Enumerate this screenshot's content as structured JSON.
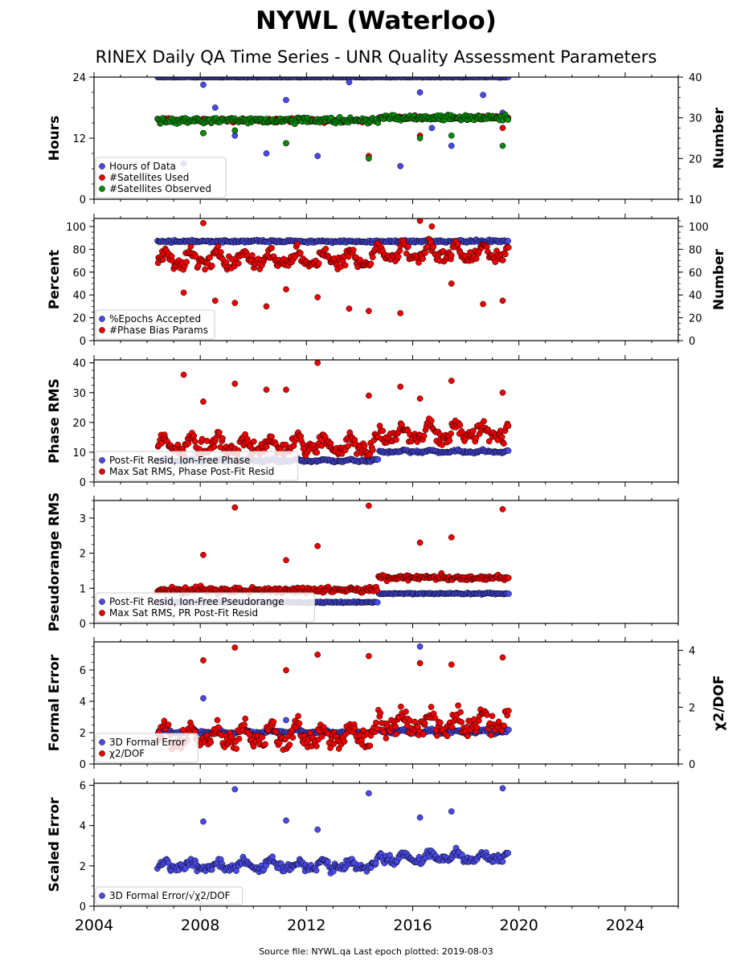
{
  "title": "NYWL (Waterloo)",
  "subtitle": "RINEX Daily QA Time Series - UNR Quality Assessment Parameters",
  "footer": "Source file: NYWL.qa Last epoch plotted: 2019-08-03",
  "colors": {
    "blue": "#4a4ae8",
    "red": "#ee0000",
    "green": "#0a8a0a",
    "edge": "#000000"
  },
  "chart_data": [
    {
      "type": "scatter",
      "panel": "hours",
      "ylabel": "Hours",
      "ylim": [
        0,
        24
      ],
      "yticks": [
        0,
        12,
        24
      ],
      "y2label": "Number",
      "y2lim": [
        10,
        40
      ],
      "y2ticks": [
        10,
        20,
        30,
        40
      ],
      "xlim": [
        2004,
        2026
      ],
      "xticks": [
        2004,
        2008,
        2012,
        2016,
        2020,
        2024
      ],
      "legend_position": "lower-left",
      "series": [
        {
          "name": "Hours of Data",
          "color": "blue",
          "axis": "left",
          "x_range": [
            2006.4,
            2019.6
          ],
          "baseline": 24,
          "trend": 0,
          "spread": 0.1,
          "outlier_values": [
            22.5,
            21.0,
            19.5,
            17.0,
            15.0,
            12.5,
            10.5,
            8.5,
            7.0,
            6.5,
            9.0,
            20.5,
            23.0,
            18.0,
            14.0
          ]
        },
        {
          "name": "#Satellites Used",
          "color": "red",
          "axis": "left",
          "x_range": [
            2006.4,
            2019.6
          ],
          "baseline": 15.5,
          "trend": 0.5,
          "spread": 0.5,
          "outlier_values": [
            13.0,
            12.5,
            11.0,
            14.0,
            8.5,
            13.5
          ]
        },
        {
          "name": "#Satellites Observed",
          "color": "green",
          "axis": "left",
          "x_range": [
            2006.4,
            2019.6
          ],
          "baseline": 15.5,
          "trend": 0.5,
          "spread": 0.8,
          "outlier_values": [
            13.0,
            12.0,
            11.0,
            10.5,
            8.0,
            13.5,
            12.5
          ]
        }
      ]
    },
    {
      "type": "scatter",
      "panel": "percent",
      "ylabel": "Percent",
      "ylim": [
        0,
        107
      ],
      "yticks": [
        0,
        20,
        40,
        60,
        80,
        100
      ],
      "y2label": "Number",
      "y2lim": [
        0,
        107
      ],
      "y2ticks": [
        0,
        20,
        40,
        60,
        80,
        100
      ],
      "xlim": [
        2004,
        2026
      ],
      "xticks": [
        2004,
        2008,
        2012,
        2016,
        2020,
        2024
      ],
      "legend_position": "lower-left",
      "series": [
        {
          "name": "%Epochs Accepted",
          "color": "blue",
          "axis": "left",
          "x_range": [
            2006.4,
            2019.6
          ],
          "baseline": 87,
          "trend": 0,
          "spread": 1.5,
          "outlier_values": []
        },
        {
          "name": "#Phase Bias Params",
          "color": "red",
          "axis": "left",
          "x_range": [
            2006.4,
            2019.6
          ],
          "baseline": 68,
          "trend": 6,
          "spread": 8,
          "outlier_values": [
            103,
            105,
            45,
            35,
            26,
            33,
            50,
            38,
            42,
            24,
            30,
            32,
            28,
            35,
            100
          ]
        }
      ]
    },
    {
      "type": "scatter",
      "panel": "phase-rms",
      "ylabel": "Phase RMS",
      "ylim": [
        0,
        41
      ],
      "yticks": [
        0,
        10,
        20,
        30,
        40
      ],
      "xlim": [
        2004,
        2026
      ],
      "xticks": [
        2004,
        2008,
        2012,
        2016,
        2020,
        2024
      ],
      "legend_position": "lower-left",
      "series": [
        {
          "name": "Post-Fit Resid, Ion-Free Phase",
          "color": "blue",
          "axis": "left",
          "x_range": [
            2006.4,
            2019.6
          ],
          "baseline": 7,
          "trend": 3,
          "spread": 0.5,
          "outlier_values": []
        },
        {
          "name": "Max Sat RMS, Phase Post-Fit Resid",
          "color": "red",
          "axis": "left",
          "x_range": [
            2006.4,
            2019.6
          ],
          "baseline": 11,
          "trend": 4,
          "spread": 3.5,
          "outlier_values": [
            27,
            28,
            31,
            30,
            29,
            33,
            34,
            40,
            36,
            32,
            31
          ]
        }
      ]
    },
    {
      "type": "scatter",
      "panel": "pseudorange-rms",
      "ylabel": "Pseudorange RMS",
      "ylim": [
        0,
        3.5
      ],
      "yticks": [
        0,
        1,
        2,
        3
      ],
      "xlim": [
        2004,
        2026
      ],
      "xticks": [
        2004,
        2008,
        2012,
        2016,
        2020,
        2024
      ],
      "legend_position": "lower-left",
      "series": [
        {
          "name": "Post-Fit Resid, Ion-Free Pseudorange",
          "color": "blue",
          "axis": "left",
          "x_range": [
            2006.4,
            2019.6
          ],
          "baseline": 0.6,
          "trend": 0.25,
          "spread": 0.03,
          "outlier_values": []
        },
        {
          "name": "Max Sat RMS, PR Post-Fit Resid",
          "color": "red",
          "axis": "left",
          "x_range": [
            2006.4,
            2019.6
          ],
          "baseline": 0.95,
          "trend": 0.35,
          "spread": 0.12,
          "outlier_values": [
            1.95,
            2.3,
            1.8,
            3.25,
            3.35,
            3.3,
            2.45,
            2.2
          ]
        }
      ]
    },
    {
      "type": "scatter",
      "panel": "formal-error",
      "ylabel": "Formal Error",
      "ylim": [
        0,
        7.8
      ],
      "yticks": [
        0,
        2,
        4,
        6
      ],
      "y2label": "χ2/DOF",
      "y2lim": [
        0,
        4.3
      ],
      "y2ticks": [
        0,
        2,
        4
      ],
      "xlim": [
        2004,
        2026
      ],
      "xticks": [
        2004,
        2008,
        2012,
        2016,
        2020,
        2024
      ],
      "legend_position": "lower-left",
      "series": [
        {
          "name": "3D Formal Error",
          "color": "blue",
          "axis": "left",
          "x_range": [
            2006.4,
            2019.6
          ],
          "baseline": 2.0,
          "trend": 0,
          "spread": 0.15,
          "outlier_values": [
            4.2,
            7.5,
            2.8
          ]
        },
        {
          "name": "χ2/DOF",
          "color": "red",
          "axis": "right",
          "x_range": [
            2006.4,
            2019.6
          ],
          "baseline": 0.8,
          "trend": 0.5,
          "spread": 0.45,
          "outlier_values": [
            3.65,
            3.55,
            3.3,
            3.75,
            3.8,
            4.1,
            3.5,
            3.85
          ]
        }
      ]
    },
    {
      "type": "scatter",
      "panel": "scaled-error",
      "ylabel": "Scaled Error",
      "ylim": [
        0,
        6.1
      ],
      "yticks": [
        0,
        2,
        4,
        6
      ],
      "xlim": [
        2004,
        2026
      ],
      "xticks": [
        2004,
        2008,
        2012,
        2016,
        2020,
        2024
      ],
      "legend_position": "lower-left",
      "series": [
        {
          "name": "3D Formal Error/√χ2/DOF",
          "color": "blue",
          "axis": "left",
          "x_range": [
            2006.4,
            2019.6
          ],
          "baseline": 1.9,
          "trend": 0.4,
          "spread": 0.3,
          "outlier_values": [
            4.2,
            4.4,
            4.25,
            5.85,
            5.6,
            5.8,
            4.7,
            3.8
          ]
        }
      ]
    }
  ]
}
